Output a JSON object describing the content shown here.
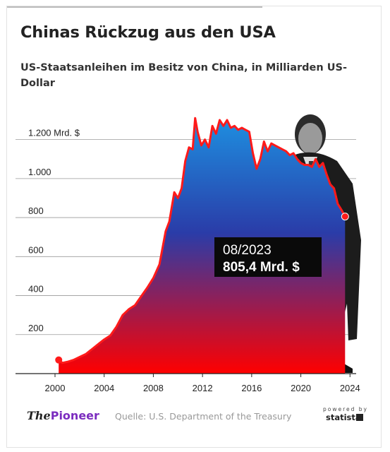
{
  "header": {
    "title": "Chinas Rückzug aus den USA",
    "subtitle": "US-Staatsanleihen im Besitz von China, in Milliarden US-Dollar"
  },
  "chart_data": {
    "type": "area",
    "title": "Chinas Rückzug aus den USA",
    "subtitle": "US-Staatsanleihen im Besitz von China, in Milliarden US-Dollar",
    "ylim": [
      0,
      1300
    ],
    "xlim": [
      2000,
      2024.5
    ],
    "y_ticks": [
      {
        "value": 200,
        "label": "200"
      },
      {
        "value": 400,
        "label": "400"
      },
      {
        "value": 600,
        "label": "600"
      },
      {
        "value": 800,
        "label": "800"
      },
      {
        "value": 1000,
        "label": "1.000"
      },
      {
        "value": 1200,
        "label": "1.200 Mrd. $"
      }
    ],
    "x_ticks": [
      "2000",
      "2004",
      "2008",
      "2012",
      "2016",
      "2020",
      "2024"
    ],
    "grid": true,
    "gradient_colors": [
      "#1e8fe0",
      "#2a3ca8",
      "#ff0000"
    ],
    "line_color": "#ff1a1a",
    "series": [
      {
        "x": [
          2000.3,
          2000.6,
          2001.0,
          2001.5,
          2002.0,
          2002.5,
          2003.0,
          2003.5,
          2004.0,
          2004.5,
          2005.0,
          2005.5,
          2006.0,
          2006.5,
          2007.0,
          2007.5,
          2008.0,
          2008.5,
          2009.0,
          2009.3,
          2009.7,
          2010.0,
          2010.3,
          2010.6,
          2010.9,
          2011.2,
          2011.4,
          2011.6,
          2011.9,
          2012.2,
          2012.5,
          2012.8,
          2013.1,
          2013.4,
          2013.7,
          2014.0,
          2014.3,
          2014.6,
          2014.9,
          2015.2,
          2015.5,
          2015.8,
          2016.1,
          2016.4,
          2016.7,
          2017.0,
          2017.3,
          2017.6,
          2017.9,
          2018.2,
          2018.5,
          2018.8,
          2019.1,
          2019.4,
          2019.7,
          2020.0,
          2020.3,
          2020.6,
          2020.9,
          2021.2,
          2021.5,
          2021.8,
          2022.1,
          2022.4,
          2022.7,
          2023.0,
          2023.3,
          2023.6
        ],
        "values": [
          70,
          55,
          60,
          70,
          85,
          100,
          125,
          150,
          175,
          195,
          240,
          300,
          330,
          350,
          395,
          440,
          490,
          560,
          730,
          780,
          930,
          900,
          950,
          1090,
          1160,
          1150,
          1310,
          1240,
          1170,
          1200,
          1160,
          1270,
          1230,
          1300,
          1270,
          1300,
          1260,
          1270,
          1250,
          1260,
          1250,
          1240,
          1130,
          1050,
          1100,
          1190,
          1140,
          1180,
          1170,
          1160,
          1150,
          1140,
          1120,
          1130,
          1100,
          1080,
          1070,
          1070,
          1060,
          1100,
          1060,
          1080,
          1020,
          970,
          950,
          870,
          840,
          805.4
        ]
      }
    ],
    "annotation": {
      "date": "08/2023",
      "value_label": "805,4 Mrd. $"
    }
  },
  "footer": {
    "brand_prefix": "The",
    "brand_name": "Pioneer",
    "source": "Quelle: U.S. Department of the Treasury",
    "powered": "powered by",
    "statista": "statista"
  }
}
